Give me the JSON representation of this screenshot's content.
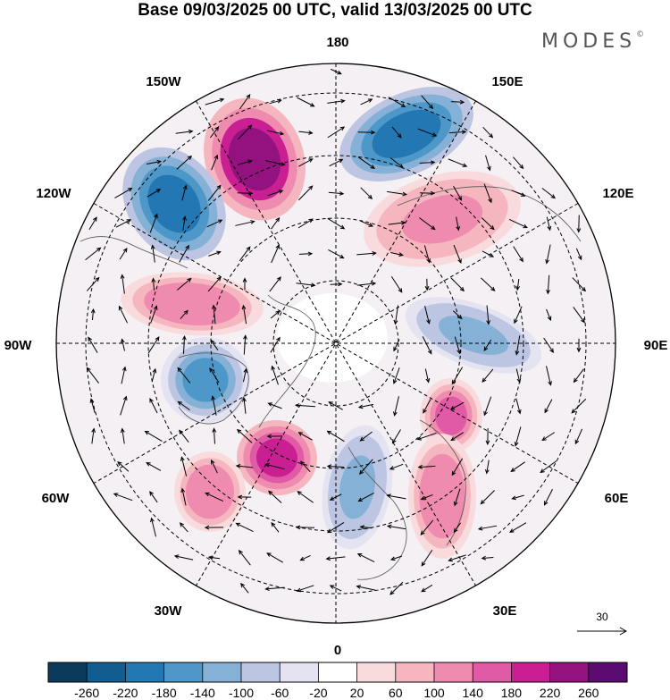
{
  "title": "Base 09/03/2025 00 UTC, valid 13/03/2025 00 UTC",
  "logo": "MODES",
  "logo_mark": "©",
  "longitude_labels": [
    "180",
    "150E",
    "120E",
    "90E",
    "60E",
    "30E",
    "0",
    "30W",
    "60W",
    "90W",
    "120W",
    "150W"
  ],
  "colorbar": {
    "colors": [
      "#0b3a5c",
      "#125d8f",
      "#2378b4",
      "#4d98c8",
      "#85b1d6",
      "#bcc5e1",
      "#e3e3f1",
      "#ffffff",
      "#f9dbde",
      "#f5b6c0",
      "#f08bb0",
      "#e05aa5",
      "#c91f93",
      "#93127f",
      "#5c0b70"
    ],
    "tick_labels": [
      "-260",
      "-220",
      "-180",
      "-140",
      "-100",
      "-60",
      "-20",
      "20",
      "60",
      "100",
      "140",
      "180",
      "220",
      "260"
    ]
  },
  "reference_vector": "30",
  "anomaly_centers": [
    {
      "name": "pacific-positive",
      "value": 240
    },
    {
      "name": "alaska-negative",
      "value": -200
    },
    {
      "name": "siberia-east-negative",
      "value": -190
    },
    {
      "name": "canada-positive",
      "value": 130
    },
    {
      "name": "hudson-negative",
      "value": -170
    },
    {
      "name": "atlantic-positive",
      "value": 200
    },
    {
      "name": "greenland-atlantic-positive",
      "value": 130
    },
    {
      "name": "scandinavia-negative",
      "value": -120
    },
    {
      "name": "ural-positive",
      "value": 140
    },
    {
      "name": "caspian-positive",
      "value": 130
    },
    {
      "name": "central-asia-negative",
      "value": -110
    },
    {
      "name": "siberia-positive",
      "value": 110
    }
  ]
}
